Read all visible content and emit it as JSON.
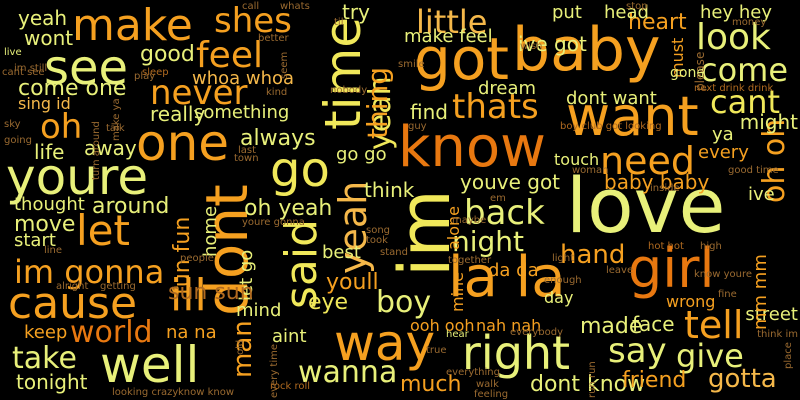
{
  "palette": {
    "background": "#000000",
    "yellow": "#f0e85a",
    "light_yellow": "#e8f07a",
    "light_orange": "#f5b84a",
    "orange": "#f5a020",
    "dark_orange": "#e87810",
    "dim_orange": "#b06a20",
    "dim": "#9a6a30"
  },
  "words": [
    {
      "text": "love",
      "tone": "light_yellow",
      "vertical": false
    },
    {
      "text": "know",
      "tone": "dark_orange",
      "vertical": false
    },
    {
      "text": "baby",
      "tone": "orange",
      "vertical": false
    },
    {
      "text": "got",
      "tone": "orange",
      "vertical": false
    },
    {
      "text": "im",
      "tone": "yellow",
      "vertical": true
    },
    {
      "text": "la la",
      "tone": "orange",
      "vertical": false
    },
    {
      "text": "girl",
      "tone": "dark_orange",
      "vertical": false
    },
    {
      "text": "want",
      "tone": "orange",
      "vertical": false
    },
    {
      "text": "dont",
      "tone": "orange",
      "vertical": true
    },
    {
      "text": "youre",
      "tone": "light_yellow",
      "vertical": false
    },
    {
      "text": "one",
      "tone": "orange",
      "vertical": false
    },
    {
      "text": "go",
      "tone": "yellow",
      "vertical": false
    },
    {
      "text": "time",
      "tone": "yellow",
      "vertical": true
    },
    {
      "text": "said",
      "tone": "yellow",
      "vertical": true
    },
    {
      "text": "yeah",
      "tone": "light_orange",
      "vertical": true
    },
    {
      "text": "yeah",
      "tone": "yellow",
      "vertical": true
    },
    {
      "text": "well",
      "tone": "light_yellow",
      "vertical": false
    },
    {
      "text": "way",
      "tone": "orange",
      "vertical": false
    },
    {
      "text": "right",
      "tone": "light_yellow",
      "vertical": false
    },
    {
      "text": "cause",
      "tone": "orange",
      "vertical": false
    },
    {
      "text": "make",
      "tone": "orange",
      "vertical": false
    },
    {
      "text": "see",
      "tone": "light_yellow",
      "vertical": false
    },
    {
      "text": "thing",
      "tone": "orange",
      "vertical": true
    },
    {
      "text": "shes",
      "tone": "orange",
      "vertical": false
    },
    {
      "text": "feel",
      "tone": "orange",
      "vertical": false
    },
    {
      "text": "never",
      "tone": "orange",
      "vertical": false
    },
    {
      "text": "little",
      "tone": "light_orange",
      "vertical": false
    },
    {
      "text": "thats",
      "tone": "orange",
      "vertical": false
    },
    {
      "text": "look",
      "tone": "light_yellow",
      "vertical": false
    },
    {
      "text": "come",
      "tone": "light_yellow",
      "vertical": false
    },
    {
      "text": "cant",
      "tone": "yellow",
      "vertical": false
    },
    {
      "text": "need",
      "tone": "orange",
      "vertical": false
    },
    {
      "text": "oh",
      "tone": "orange",
      "vertical": false
    },
    {
      "text": "oh oh",
      "tone": "orange",
      "vertical": true
    },
    {
      "text": "back",
      "tone": "light_yellow",
      "vertical": false
    },
    {
      "text": "night",
      "tone": "light_yellow",
      "vertical": false
    },
    {
      "text": "let",
      "tone": "orange",
      "vertical": false
    },
    {
      "text": "im gonna",
      "tone": "orange",
      "vertical": false
    },
    {
      "text": "ill",
      "tone": "orange",
      "vertical": false
    },
    {
      "text": "tell",
      "tone": "orange",
      "vertical": false
    },
    {
      "text": "say",
      "tone": "light_yellow",
      "vertical": false
    },
    {
      "text": "give",
      "tone": "light_yellow",
      "vertical": false
    },
    {
      "text": "boy",
      "tone": "light_yellow",
      "vertical": false
    },
    {
      "text": "wanna",
      "tone": "light_yellow",
      "vertical": false
    },
    {
      "text": "world",
      "tone": "dark_orange",
      "vertical": false
    },
    {
      "text": "take",
      "tone": "light_yellow",
      "vertical": false
    },
    {
      "text": "man",
      "tone": "orange",
      "vertical": true
    },
    {
      "text": "hand",
      "tone": "orange",
      "vertical": false
    },
    {
      "text": "made",
      "tone": "light_yellow",
      "vertical": false
    },
    {
      "text": "face",
      "tone": "light_yellow",
      "vertical": false
    },
    {
      "text": "gotta",
      "tone": "light_orange",
      "vertical": false
    },
    {
      "text": "dont know",
      "tone": "light_yellow",
      "vertical": false
    },
    {
      "text": "much",
      "tone": "orange",
      "vertical": false
    },
    {
      "text": "friend",
      "tone": "orange",
      "vertical": false
    },
    {
      "text": "yeah",
      "tone": "light_yellow",
      "vertical": false
    },
    {
      "text": "wont",
      "tone": "light_yellow",
      "vertical": false
    },
    {
      "text": "come one",
      "tone": "light_yellow",
      "vertical": false
    },
    {
      "text": "good",
      "tone": "light_yellow",
      "vertical": false
    },
    {
      "text": "whoa whoa",
      "tone": "light_orange",
      "vertical": false
    },
    {
      "text": "really",
      "tone": "light_yellow",
      "vertical": false
    },
    {
      "text": "something",
      "tone": "light_yellow",
      "vertical": false
    },
    {
      "text": "always",
      "tone": "light_yellow",
      "vertical": false
    },
    {
      "text": "life",
      "tone": "light_yellow",
      "vertical": false
    },
    {
      "text": "away",
      "tone": "light_yellow",
      "vertical": false
    },
    {
      "text": "around",
      "tone": "light_yellow",
      "vertical": false
    },
    {
      "text": "thought",
      "tone": "light_yellow",
      "vertical": false
    },
    {
      "text": "move",
      "tone": "light_yellow",
      "vertical": false
    },
    {
      "text": "start",
      "tone": "light_yellow",
      "vertical": false
    },
    {
      "text": "keep",
      "tone": "orange",
      "vertical": false
    },
    {
      "text": "tonight",
      "tone": "light_yellow",
      "vertical": false
    },
    {
      "text": "sing id",
      "tone": "light_orange",
      "vertical": false
    },
    {
      "text": "fun fun",
      "tone": "orange",
      "vertical": true
    },
    {
      "text": "home",
      "tone": "light_yellow",
      "vertical": true
    },
    {
      "text": "oh yeah",
      "tone": "light_yellow",
      "vertical": false
    },
    {
      "text": "let go",
      "tone": "light_yellow",
      "vertical": true
    },
    {
      "text": "youll",
      "tone": "orange",
      "vertical": false
    },
    {
      "text": "eye",
      "tone": "yellow",
      "vertical": false
    },
    {
      "text": "mind",
      "tone": "light_yellow",
      "vertical": false
    },
    {
      "text": "aint",
      "tone": "light_yellow",
      "vertical": false
    },
    {
      "text": "na na",
      "tone": "orange",
      "vertical": false
    },
    {
      "text": "go go",
      "tone": "light_yellow",
      "vertical": false
    },
    {
      "text": "think",
      "tone": "light_yellow",
      "vertical": false
    },
    {
      "text": "youve got",
      "tone": "light_yellow",
      "vertical": false
    },
    {
      "text": "baby baby",
      "tone": "orange",
      "vertical": false
    },
    {
      "text": "ive got",
      "tone": "light_yellow",
      "vertical": false
    },
    {
      "text": "dont want",
      "tone": "light_yellow",
      "vertical": false
    },
    {
      "text": "heart",
      "tone": "orange",
      "vertical": false
    },
    {
      "text": "hey hey",
      "tone": "light_yellow",
      "vertical": false
    },
    {
      "text": "might",
      "tone": "light_yellow",
      "vertical": false
    },
    {
      "text": "ya",
      "tone": "light_yellow",
      "vertical": false
    },
    {
      "text": "every",
      "tone": "orange",
      "vertical": false
    },
    {
      "text": "ive",
      "tone": "light_yellow",
      "vertical": false
    },
    {
      "text": "try",
      "tone": "light_yellow",
      "vertical": false
    },
    {
      "text": "put",
      "tone": "light_yellow",
      "vertical": false
    },
    {
      "text": "head",
      "tone": "light_yellow",
      "vertical": false
    },
    {
      "text": "find",
      "tone": "light_yellow",
      "vertical": false
    },
    {
      "text": "make feel",
      "tone": "light_yellow",
      "vertical": false
    },
    {
      "text": "dream",
      "tone": "light_yellow",
      "vertical": false
    },
    {
      "text": "touch",
      "tone": "light_yellow",
      "vertical": false
    },
    {
      "text": "da da",
      "tone": "orange",
      "vertical": false
    },
    {
      "text": "day",
      "tone": "light_yellow",
      "vertical": false
    },
    {
      "text": "nah nah",
      "tone": "orange",
      "vertical": false
    },
    {
      "text": "ooh ooh",
      "tone": "orange",
      "vertical": false
    },
    {
      "text": "wrong",
      "tone": "orange",
      "vertical": false
    },
    {
      "text": "street",
      "tone": "light_yellow",
      "vertical": false
    },
    {
      "text": "mm mm",
      "tone": "orange",
      "vertical": true
    },
    {
      "text": "alone",
      "tone": "orange",
      "vertical": true
    },
    {
      "text": "best",
      "tone": "light_yellow",
      "vertical": false
    },
    {
      "text": "mine",
      "tone": "orange",
      "vertical": true
    },
    {
      "text": "must",
      "tone": "orange",
      "vertical": true
    },
    {
      "text": "gone",
      "tone": "light_yellow",
      "vertical": false
    },
    {
      "text": "live",
      "tone": "light_yellow",
      "vertical": false
    },
    {
      "text": "sleep",
      "tone": "dim_orange",
      "vertical": false
    },
    {
      "text": "call",
      "tone": "dim",
      "vertical": false
    },
    {
      "text": "whats",
      "tone": "dim",
      "vertical": false
    },
    {
      "text": "til",
      "tone": "dim",
      "vertical": false
    },
    {
      "text": "stop",
      "tone": "dim",
      "vertical": false
    },
    {
      "text": "money",
      "tone": "dim",
      "vertical": false
    },
    {
      "text": "better",
      "tone": "dim",
      "vertical": false
    },
    {
      "text": "smile",
      "tone": "dim",
      "vertical": false
    },
    {
      "text": "wish",
      "tone": "dim",
      "vertical": false
    },
    {
      "text": "please",
      "tone": "dim",
      "vertical": true
    },
    {
      "text": "next drink drink",
      "tone": "dim_orange",
      "vertical": false
    },
    {
      "text": "im still",
      "tone": "dim",
      "vertical": false
    },
    {
      "text": "play",
      "tone": "dim",
      "vertical": false
    },
    {
      "text": "cant see",
      "tone": "dim",
      "vertical": false
    },
    {
      "text": "make ya",
      "tone": "dim",
      "vertical": true
    },
    {
      "text": "kind",
      "tone": "dim",
      "vertical": false
    },
    {
      "text": "nobody",
      "tone": "dim",
      "vertical": false
    },
    {
      "text": "turn around",
      "tone": "dim",
      "vertical": true
    },
    {
      "text": "talk",
      "tone": "dim",
      "vertical": false
    },
    {
      "text": "sky",
      "tone": "dim",
      "vertical": false
    },
    {
      "text": "going",
      "tone": "dim",
      "vertical": false
    },
    {
      "text": "guy",
      "tone": "dim",
      "vertical": false
    },
    {
      "text": "boy club got looking",
      "tone": "dim_orange",
      "vertical": false
    },
    {
      "text": "last",
      "tone": "dim",
      "vertical": false
    },
    {
      "text": "town",
      "tone": "dim",
      "vertical": false
    },
    {
      "text": "woman",
      "tone": "dim",
      "vertical": false
    },
    {
      "text": "em",
      "tone": "dim",
      "vertical": false
    },
    {
      "text": "good time",
      "tone": "dim",
      "vertical": false
    },
    {
      "text": "inside",
      "tone": "dim",
      "vertical": false
    },
    {
      "text": "youre gonna",
      "tone": "dim",
      "vertical": false
    },
    {
      "text": "maybe",
      "tone": "dim",
      "vertical": false
    },
    {
      "text": "song",
      "tone": "dim",
      "vertical": false
    },
    {
      "text": "took",
      "tone": "dim",
      "vertical": false
    },
    {
      "text": "line",
      "tone": "dim",
      "vertical": false
    },
    {
      "text": "people",
      "tone": "dim",
      "vertical": false
    },
    {
      "text": "stand",
      "tone": "dim",
      "vertical": false
    },
    {
      "text": "together",
      "tone": "dim",
      "vertical": false
    },
    {
      "text": "light",
      "tone": "dim",
      "vertical": false
    },
    {
      "text": "hot hot",
      "tone": "dim_orange",
      "vertical": false
    },
    {
      "text": "high",
      "tone": "dim",
      "vertical": false
    },
    {
      "text": "leave",
      "tone": "dim",
      "vertical": false
    },
    {
      "text": "enough",
      "tone": "dim",
      "vertical": false
    },
    {
      "text": "alright",
      "tone": "dim",
      "vertical": false
    },
    {
      "text": "getting",
      "tone": "dim",
      "vertical": false
    },
    {
      "text": "know youre",
      "tone": "dim",
      "vertical": false
    },
    {
      "text": "fine",
      "tone": "dim",
      "vertical": false
    },
    {
      "text": "sun sun",
      "tone": "dim_orange",
      "vertical": false
    },
    {
      "text": "hear",
      "tone": "light_yellow",
      "vertical": false
    },
    {
      "text": "true",
      "tone": "dim",
      "vertical": false
    },
    {
      "text": "old",
      "tone": "dim",
      "vertical": true
    },
    {
      "text": "every time",
      "tone": "dim",
      "vertical": true
    },
    {
      "text": "everybody",
      "tone": "dim",
      "vertical": false
    },
    {
      "text": "run run",
      "tone": "dim",
      "vertical": true
    },
    {
      "text": "everything",
      "tone": "dim",
      "vertical": false
    },
    {
      "text": "walk",
      "tone": "dim",
      "vertical": false
    },
    {
      "text": "feeling",
      "tone": "dim",
      "vertical": false
    },
    {
      "text": "rock roll",
      "tone": "dim_orange",
      "vertical": false
    },
    {
      "text": "looking crazy",
      "tone": "dim",
      "vertical": false
    },
    {
      "text": "know know",
      "tone": "dim",
      "vertical": false
    },
    {
      "text": "think im",
      "tone": "dim",
      "vertical": false
    },
    {
      "text": "place",
      "tone": "dim",
      "vertical": true
    },
    {
      "text": "seem",
      "tone": "dim",
      "vertical": true
    },
    {
      "text": "car",
      "tone": "dim",
      "vertical": false
    }
  ]
}
